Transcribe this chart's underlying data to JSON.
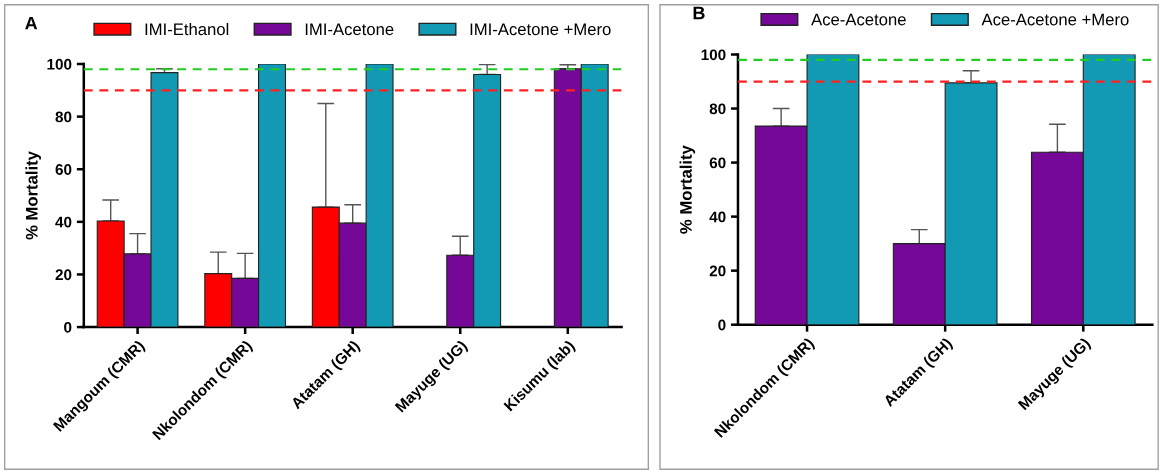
{
  "chart_data": [
    {
      "type": "bar",
      "title": "A",
      "ylabel": "% Mortality",
      "categories": [
        "Mangoum (CMR)",
        "Nkolondom (CMR)",
        "Atatam (GH)",
        "Mayuge (UG)",
        "Kisumu (lab)"
      ],
      "series": [
        {
          "name": "IMI-Ethanol",
          "color": "#ff0000",
          "values": [
            40.3,
            20.3,
            45.6,
            null,
            null
          ],
          "errors": [
            [
              40.3,
              48.3
            ],
            [
              20.3,
              28.5
            ],
            [
              45.6,
              85
            ],
            null,
            null
          ]
        },
        {
          "name": "IMI-Acetone",
          "color": "#750896",
          "values": [
            27.8,
            18.5,
            39.5,
            27.3,
            98.2
          ],
          "errors": [
            [
              27.8,
              35.5
            ],
            [
              18.5,
              28
            ],
            [
              39.5,
              46.5
            ],
            [
              27.3,
              34.5
            ],
            [
              98.2,
              99.7
            ]
          ]
        },
        {
          "name": "IMI-Acetone +Mero",
          "color": "#129ab4",
          "values": [
            96.7,
            100,
            100,
            96,
            100
          ],
          "errors": [
            [
              96.7,
              98.2
            ],
            null,
            null,
            [
              96,
              99.8
            ],
            null
          ]
        }
      ],
      "ylim": [
        0,
        100
      ],
      "yticks": [
        0,
        20,
        40,
        60,
        80,
        100
      ],
      "ref_lines": [
        {
          "axis": "y",
          "value": 98,
          "color": "#22cc22",
          "line_style": "dashed"
        },
        {
          "axis": "y",
          "value": 90,
          "color": "#ff2020",
          "line_style": "dashed"
        }
      ],
      "legend": "top",
      "grid": false
    },
    {
      "type": "bar",
      "title": "B",
      "ylabel": "% Mortality",
      "categories": [
        "Nkolondom (CMR)",
        "Atatam (GH)",
        "Mayuge (UG)"
      ],
      "series": [
        {
          "name": "Ace-Acetone",
          "color": "#750896",
          "values": [
            73.5,
            30,
            63.8
          ],
          "errors": [
            [
              73.5,
              80
            ],
            [
              30,
              35.2
            ],
            [
              63.8,
              74.2
            ]
          ]
        },
        {
          "name": "Ace-Acetone +Mero",
          "color": "#129ab4",
          "values": [
            100,
            89.5,
            100
          ],
          "errors": [
            null,
            [
              89.5,
              94
            ],
            null
          ]
        }
      ],
      "ylim": [
        0,
        100
      ],
      "yticks": [
        0,
        20,
        40,
        60,
        80,
        100
      ],
      "ref_lines": [
        {
          "axis": "y",
          "value": 98,
          "color": "#22cc22",
          "line_style": "dashed"
        },
        {
          "axis": "y",
          "value": 90,
          "color": "#ff2020",
          "line_style": "dashed"
        }
      ],
      "legend": "top",
      "grid": false
    }
  ]
}
